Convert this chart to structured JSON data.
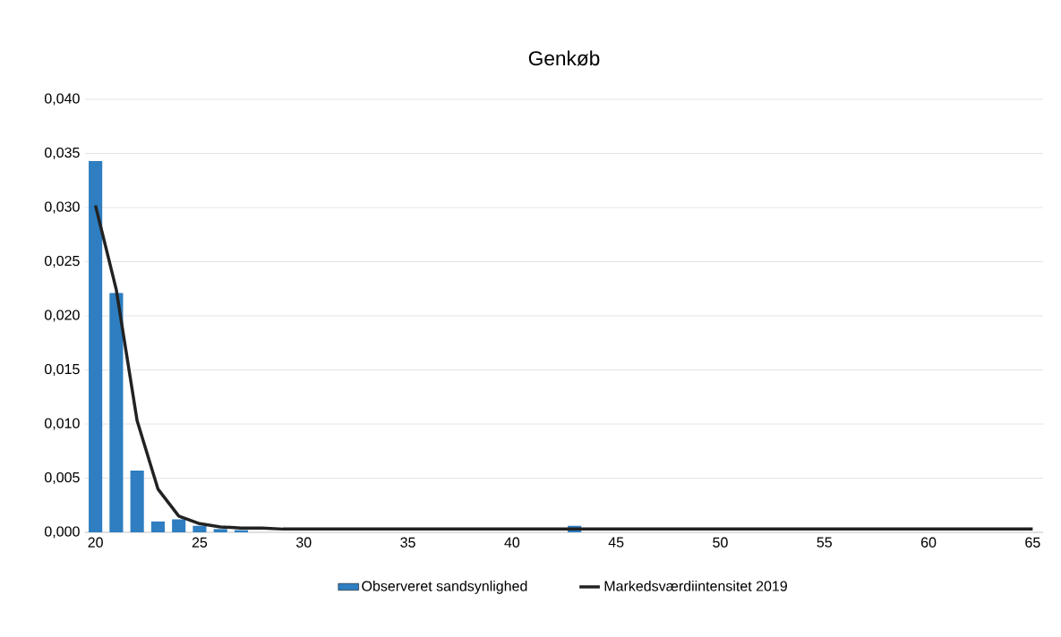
{
  "chart_data": {
    "type": "bar",
    "title": "Genkøb",
    "categories": [
      "20",
      null,
      null,
      null,
      null,
      "25",
      null,
      null,
      null,
      null,
      "30",
      null,
      null,
      null,
      null,
      "35",
      null,
      null,
      null,
      null,
      "40",
      null,
      null,
      null,
      null,
      "45",
      null,
      null,
      null,
      null,
      "50",
      null,
      null,
      null,
      null,
      "55",
      null,
      null,
      null,
      null,
      "60",
      null,
      null,
      null,
      null,
      "65"
    ],
    "series": [
      {
        "name": "Observeret sandsynlighed",
        "color": "#2e7ec1",
        "values": [
          0.0343,
          0.0221,
          0.0057,
          0.001,
          0.0012,
          0.0006,
          0.0003,
          0.0002,
          0,
          0,
          0,
          0,
          0,
          0,
          0,
          0,
          0,
          0,
          0,
          0,
          0,
          0,
          0,
          0.0006,
          0,
          0,
          0,
          0,
          0,
          0,
          0,
          0,
          0,
          0,
          0,
          0,
          0,
          0,
          0,
          0,
          0,
          0,
          0,
          0,
          0,
          0
        ]
      },
      {
        "name": "Markedsværdiintensitet 2019",
        "type": "line",
        "color": "#222222",
        "values": [
          0.0302,
          0.0224,
          0.0103,
          0.004,
          0.0015,
          0.0008,
          0.0005,
          0.0004,
          0.0004,
          0.0003,
          0.0003,
          0.0003,
          0.0003,
          0.0003,
          0.0003,
          0.0003,
          0.0003,
          0.0003,
          0.0003,
          0.0003,
          0.0003,
          0.0003,
          0.0003,
          0.0003,
          0.0003,
          0.0003,
          0.0003,
          0.0003,
          0.0003,
          0.0003,
          0.0003,
          0.0003,
          0.0003,
          0.0003,
          0.0003,
          0.0003,
          0.0003,
          0.0003,
          0.0003,
          0.0003,
          0.0003,
          0.0003,
          0.0003,
          0.0003,
          0.0003,
          0.0003
        ]
      }
    ],
    "ylim": [
      0,
      0.04
    ],
    "yticks": [
      {
        "value": 0,
        "label": "0,000"
      },
      {
        "value": 0.005,
        "label": "0,005"
      },
      {
        "value": 0.01,
        "label": "0,010"
      },
      {
        "value": 0.015,
        "label": "0,015"
      },
      {
        "value": 0.02,
        "label": "0,020"
      },
      {
        "value": 0.025,
        "label": "0,025"
      },
      {
        "value": 0.03,
        "label": "0,030"
      },
      {
        "value": 0.035,
        "label": "0,035"
      },
      {
        "value": 0.04,
        "label": "0,040"
      }
    ],
    "grid": "y",
    "legend": "bottom",
    "marker": "none",
    "line_style": "solid"
  }
}
